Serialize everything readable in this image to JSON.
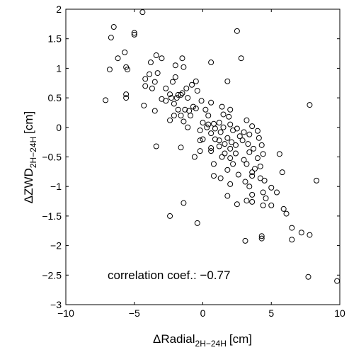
{
  "chart_data": {
    "type": "scatter",
    "x_label": {
      "main": "ΔRadial",
      "sub": "2H−24H",
      "unit": "[cm]"
    },
    "y_label": {
      "main": "ΔZWD",
      "sub": "2H−24H",
      "unit": "[cm]"
    },
    "xlim": [
      -10,
      10
    ],
    "ylim": [
      -3,
      2
    ],
    "x_ticks": [
      "−10",
      "−5",
      "0",
      "5",
      "10"
    ],
    "y_ticks": [
      "2",
      "1.5",
      "1",
      "0.5",
      "0",
      "−0.5",
      "−1",
      "−1.5",
      "−2",
      "−2.5",
      "−3"
    ],
    "annotation": "correlation coef.: −0.77",
    "marker": "open-circle",
    "grid": false,
    "points": [
      [
        -4.4,
        1.95
      ],
      [
        -6.5,
        1.7
      ],
      [
        2.5,
        1.63
      ],
      [
        -5.0,
        1.6
      ],
      [
        -5.0,
        1.57
      ],
      [
        -6.7,
        1.52
      ],
      [
        -5.7,
        1.27
      ],
      [
        -3.4,
        1.22
      ],
      [
        -3.0,
        1.17
      ],
      [
        -6.2,
        1.17
      ],
      [
        2.8,
        1.17
      ],
      [
        -1.5,
        1.17
      ],
      [
        -3.8,
        1.1
      ],
      [
        0.6,
        1.1
      ],
      [
        -2.0,
        1.05
      ],
      [
        -1.4,
        1.02
      ],
      [
        -5.6,
        1.02
      ],
      [
        -5.5,
        0.98
      ],
      [
        -6.8,
        0.98
      ],
      [
        -3.3,
        0.92
      ],
      [
        -3.9,
        0.9
      ],
      [
        -4.2,
        0.82
      ],
      [
        -2.0,
        0.85
      ],
      [
        -0.5,
        0.78
      ],
      [
        -3.5,
        0.77
      ],
      [
        -2.2,
        0.77
      ],
      [
        -0.8,
        0.72
      ],
      [
        1.8,
        0.78
      ],
      [
        -4.2,
        0.7
      ],
      [
        -3.7,
        0.66
      ],
      [
        -2.7,
        0.66
      ],
      [
        -1.2,
        0.66
      ],
      [
        -0.4,
        0.62
      ],
      [
        -1.5,
        0.58
      ],
      [
        -1.6,
        0.55
      ],
      [
        -2.4,
        0.56
      ],
      [
        -5.6,
        0.56
      ],
      [
        -2.3,
        0.5
      ],
      [
        -1.9,
        0.5
      ],
      [
        -1.8,
        0.55
      ],
      [
        -1.1,
        0.5
      ],
      [
        -0.1,
        0.45
      ],
      [
        -5.6,
        0.5
      ],
      [
        -7.1,
        0.46
      ],
      [
        -3.0,
        0.48
      ],
      [
        -2.7,
        0.45
      ],
      [
        -2.1,
        0.4
      ],
      [
        -0.7,
        0.35
      ],
      [
        -4.3,
        0.37
      ],
      [
        0.6,
        0.42
      ],
      [
        -3.5,
        0.28
      ],
      [
        -1.8,
        0.3
      ],
      [
        -1.3,
        0.3
      ],
      [
        -1.0,
        0.28
      ],
      [
        -0.5,
        0.32
      ],
      [
        0.2,
        0.3
      ],
      [
        1.4,
        0.35
      ],
      [
        2.0,
        0.3
      ],
      [
        7.8,
        0.38
      ],
      [
        -2.1,
        0.2
      ],
      [
        -1.6,
        0.2
      ],
      [
        -0.9,
        0.2
      ],
      [
        0.4,
        0.2
      ],
      [
        1.5,
        0.22
      ],
      [
        1.9,
        0.18
      ],
      [
        -1.4,
        0.1
      ],
      [
        -2.4,
        0.12
      ],
      [
        0.0,
        0.08
      ],
      [
        0.4,
        0.05
      ],
      [
        0.8,
        0.06
      ],
      [
        1.2,
        0.08
      ],
      [
        2.0,
        0.05
      ],
      [
        3.2,
        0.12
      ],
      [
        -1.1,
        0.0
      ],
      [
        0.3,
        0.0
      ],
      [
        0.9,
        -0.02
      ],
      [
        1.5,
        0.0
      ],
      [
        2.5,
        -0.02
      ],
      [
        3.6,
        0.02
      ],
      [
        -0.2,
        -0.05
      ],
      [
        0.6,
        -0.1
      ],
      [
        1.3,
        -0.08
      ],
      [
        2.2,
        -0.05
      ],
      [
        3.0,
        -0.08
      ],
      [
        4.0,
        -0.06
      ],
      [
        3.4,
        -0.12
      ],
      [
        2.7,
        -0.15
      ],
      [
        1.8,
        -0.18
      ],
      [
        0.9,
        -0.2
      ],
      [
        0.0,
        -0.2
      ],
      [
        -0.2,
        -0.22
      ],
      [
        1.2,
        -0.22
      ],
      [
        2.1,
        -0.25
      ],
      [
        2.9,
        -0.22
      ],
      [
        4.1,
        -0.18
      ],
      [
        1.6,
        -0.28
      ],
      [
        2.4,
        -0.3
      ],
      [
        3.3,
        -0.28
      ],
      [
        4.3,
        -0.3
      ],
      [
        -3.4,
        -0.32
      ],
      [
        -1.6,
        -0.34
      ],
      [
        0.6,
        -0.35
      ],
      [
        1.2,
        -0.32
      ],
      [
        2.0,
        -0.36
      ],
      [
        3.7,
        -0.36
      ],
      [
        -0.2,
        -0.4
      ],
      [
        0.6,
        -0.4
      ],
      [
        1.6,
        -0.44
      ],
      [
        2.4,
        -0.44
      ],
      [
        3.4,
        -0.42
      ],
      [
        4.4,
        -0.45
      ],
      [
        5.6,
        -0.45
      ],
      [
        -0.6,
        -0.5
      ],
      [
        1.4,
        -0.5
      ],
      [
        2.0,
        -0.52
      ],
      [
        3.0,
        -0.55
      ],
      [
        4.0,
        -0.52
      ],
      [
        2.2,
        -0.62
      ],
      [
        3.2,
        -0.62
      ],
      [
        0.8,
        -0.62
      ],
      [
        4.2,
        -0.66
      ],
      [
        3.8,
        -0.7
      ],
      [
        1.8,
        -0.72
      ],
      [
        3.6,
        -0.76
      ],
      [
        5.8,
        -0.76
      ],
      [
        2.6,
        -0.8
      ],
      [
        3.6,
        -0.82
      ],
      [
        0.8,
        -0.82
      ],
      [
        1.3,
        -0.86
      ],
      [
        4.2,
        -0.86
      ],
      [
        4.5,
        -0.9
      ],
      [
        8.3,
        -0.9
      ],
      [
        3.1,
        -0.92
      ],
      [
        2.0,
        -0.96
      ],
      [
        3.4,
        -1.0
      ],
      [
        5.0,
        -1.02
      ],
      [
        5.4,
        -1.1
      ],
      [
        4.4,
        -1.1
      ],
      [
        3.6,
        -1.14
      ],
      [
        1.8,
        -1.16
      ],
      [
        4.6,
        -1.2
      ],
      [
        3.2,
        -1.24
      ],
      [
        -1.4,
        -1.28
      ],
      [
        2.5,
        -1.3
      ],
      [
        3.6,
        -1.26
      ],
      [
        5.0,
        -1.32
      ],
      [
        4.4,
        -1.32
      ],
      [
        5.9,
        -1.38
      ],
      [
        6.1,
        -1.46
      ],
      [
        -2.4,
        -1.5
      ],
      [
        -0.4,
        -1.62
      ],
      [
        6.5,
        -1.7
      ],
      [
        7.2,
        -1.78
      ],
      [
        7.8,
        -1.82
      ],
      [
        4.3,
        -1.84
      ],
      [
        4.3,
        -1.88
      ],
      [
        3.1,
        -1.92
      ],
      [
        6.5,
        -1.9
      ],
      [
        7.7,
        -2.53
      ],
      [
        9.8,
        -2.6
      ]
    ]
  }
}
